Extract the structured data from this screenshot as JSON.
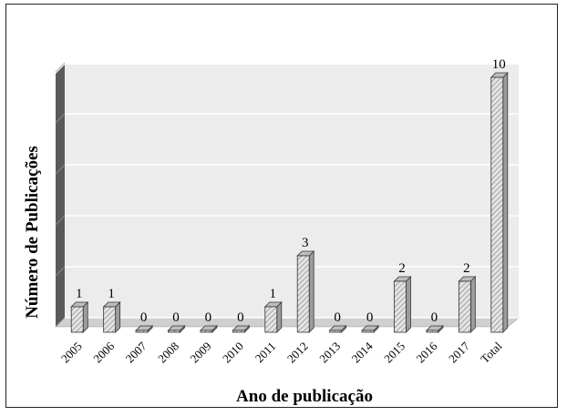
{
  "chart_data": {
    "type": "bar",
    "categories": [
      "2005",
      "2006",
      "2007",
      "2008",
      "2009",
      "2010",
      "2011",
      "2012",
      "2013",
      "2014",
      "2015",
      "2016",
      "2017",
      "Total"
    ],
    "values": [
      1,
      1,
      0,
      0,
      0,
      0,
      1,
      3,
      0,
      0,
      2,
      0,
      2,
      10
    ],
    "data_labels": [
      "1",
      "1",
      "0",
      "0",
      "0",
      "0",
      "1",
      "3",
      "0",
      "0",
      "2",
      "0",
      "2",
      "10"
    ],
    "xlabel": "Ano de publicação",
    "ylabel": "Número de Publicações",
    "ylim": [
      0,
      10
    ],
    "grid": true,
    "style": "3d-hatched",
    "bar_color": "#d8d8d8",
    "wall_color": "#ececec",
    "side_wall_color": "#5a5a5a"
  }
}
